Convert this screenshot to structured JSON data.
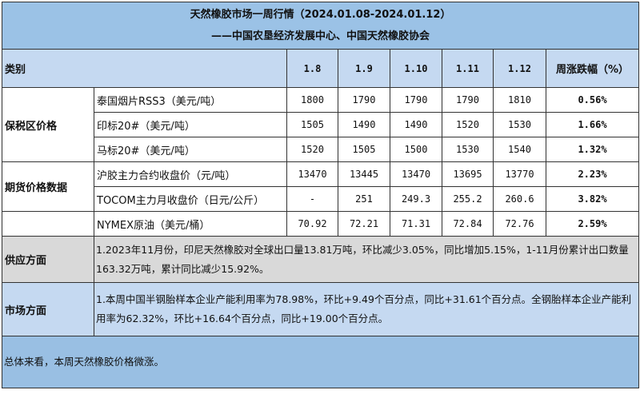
{
  "title": {
    "line1": "天然橡胶市场一周行情（2024.01.08-2024.01.12）",
    "line2": "——中国农垦经济发展中心、中国天然橡胶协会"
  },
  "header": {
    "category": "类别",
    "dates": [
      "1.8",
      "1.9",
      "1.10",
      "1.11",
      "1.12"
    ],
    "change": "周涨跌幅（%）"
  },
  "groups": {
    "bonded": "保税区价格",
    "futures": "期货价格数据"
  },
  "rows": [
    {
      "name": "泰国烟片RSS3（美元/吨）",
      "values": [
        "1800",
        "1790",
        "1790",
        "1790",
        "1810"
      ],
      "change": "0.56%"
    },
    {
      "name": "印标20#（美元/吨）",
      "values": [
        "1505",
        "1490",
        "1490",
        "1520",
        "1530"
      ],
      "change": "1.66%"
    },
    {
      "name": "马标20#（美元/吨）",
      "values": [
        "1520",
        "1505",
        "1500",
        "1530",
        "1540"
      ],
      "change": "1.32%"
    },
    {
      "name": "沪胶主力合约收盘价（元/吨）",
      "values": [
        "13470",
        "13445",
        "13470",
        "13695",
        "13770"
      ],
      "change": "2.23%"
    },
    {
      "name": "TOCOM主力月收盘价（日元/公斤）",
      "values": [
        "-",
        "251",
        "249.3",
        "255.2",
        "260.6"
      ],
      "change": "3.82%"
    },
    {
      "name": "NYMEX原油（美元/桶）",
      "values": [
        "70.92",
        "72.21",
        "71.31",
        "72.84",
        "72.76"
      ],
      "change": "2.59%"
    }
  ],
  "supply": {
    "label": "供应方面",
    "text": "1.2023年11月份，印尼天然橡胶对全球出口量13.81万吨，环比减少3.05%，同比增加5.15%，1-11月份累计出口数量163.32万吨，累计同比减少15.92%。"
  },
  "market": {
    "label": "市场方面",
    "text": "1.本周中国半钢胎样本企业产能利用率为78.98%，环比+9.49个百分点，同比+31.61个百分点。全钢胎样本企业产能利用率为62.32%，环比+16.64个百分点，同比+19.00个百分点。"
  },
  "summary": {
    "text": "总体来看，本周天然橡胶价格微涨。"
  }
}
